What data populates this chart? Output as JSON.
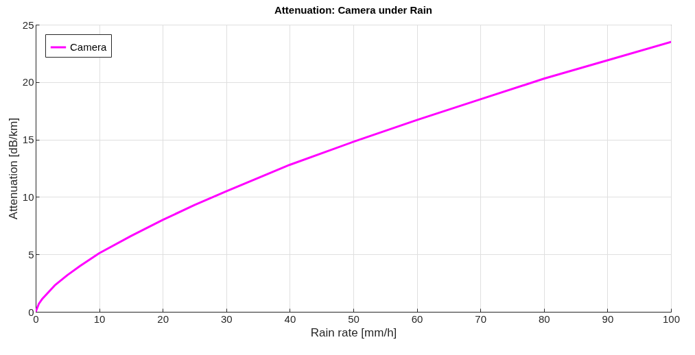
{
  "chart_data": {
    "type": "line",
    "title": "Attenuation: Camera under Rain",
    "xlabel": "Rain rate [mm/h]",
    "ylabel": "Attenuation [dB/km]",
    "x": [
      0,
      0.5,
      1,
      2,
      3,
      5,
      7,
      10,
      15,
      20,
      25,
      30,
      40,
      50,
      60,
      70,
      80,
      90,
      100
    ],
    "series": [
      {
        "name": "Camera",
        "color": "#ff00ff",
        "values": [
          0,
          0.7,
          1.1,
          1.7,
          2.3,
          3.2,
          4.0,
          5.1,
          6.6,
          8.0,
          9.3,
          10.5,
          12.8,
          14.8,
          16.7,
          18.5,
          20.3,
          21.9,
          23.5
        ]
      }
    ],
    "xlim": [
      0,
      100
    ],
    "xticks": [
      0,
      10,
      20,
      30,
      40,
      50,
      60,
      70,
      80,
      90,
      100
    ],
    "ylim": [
      0,
      25
    ],
    "yticks": [
      0,
      5,
      10,
      15,
      20,
      25
    ],
    "grid": true,
    "legend": "top left",
    "marker": "none",
    "line_style": "solid"
  }
}
